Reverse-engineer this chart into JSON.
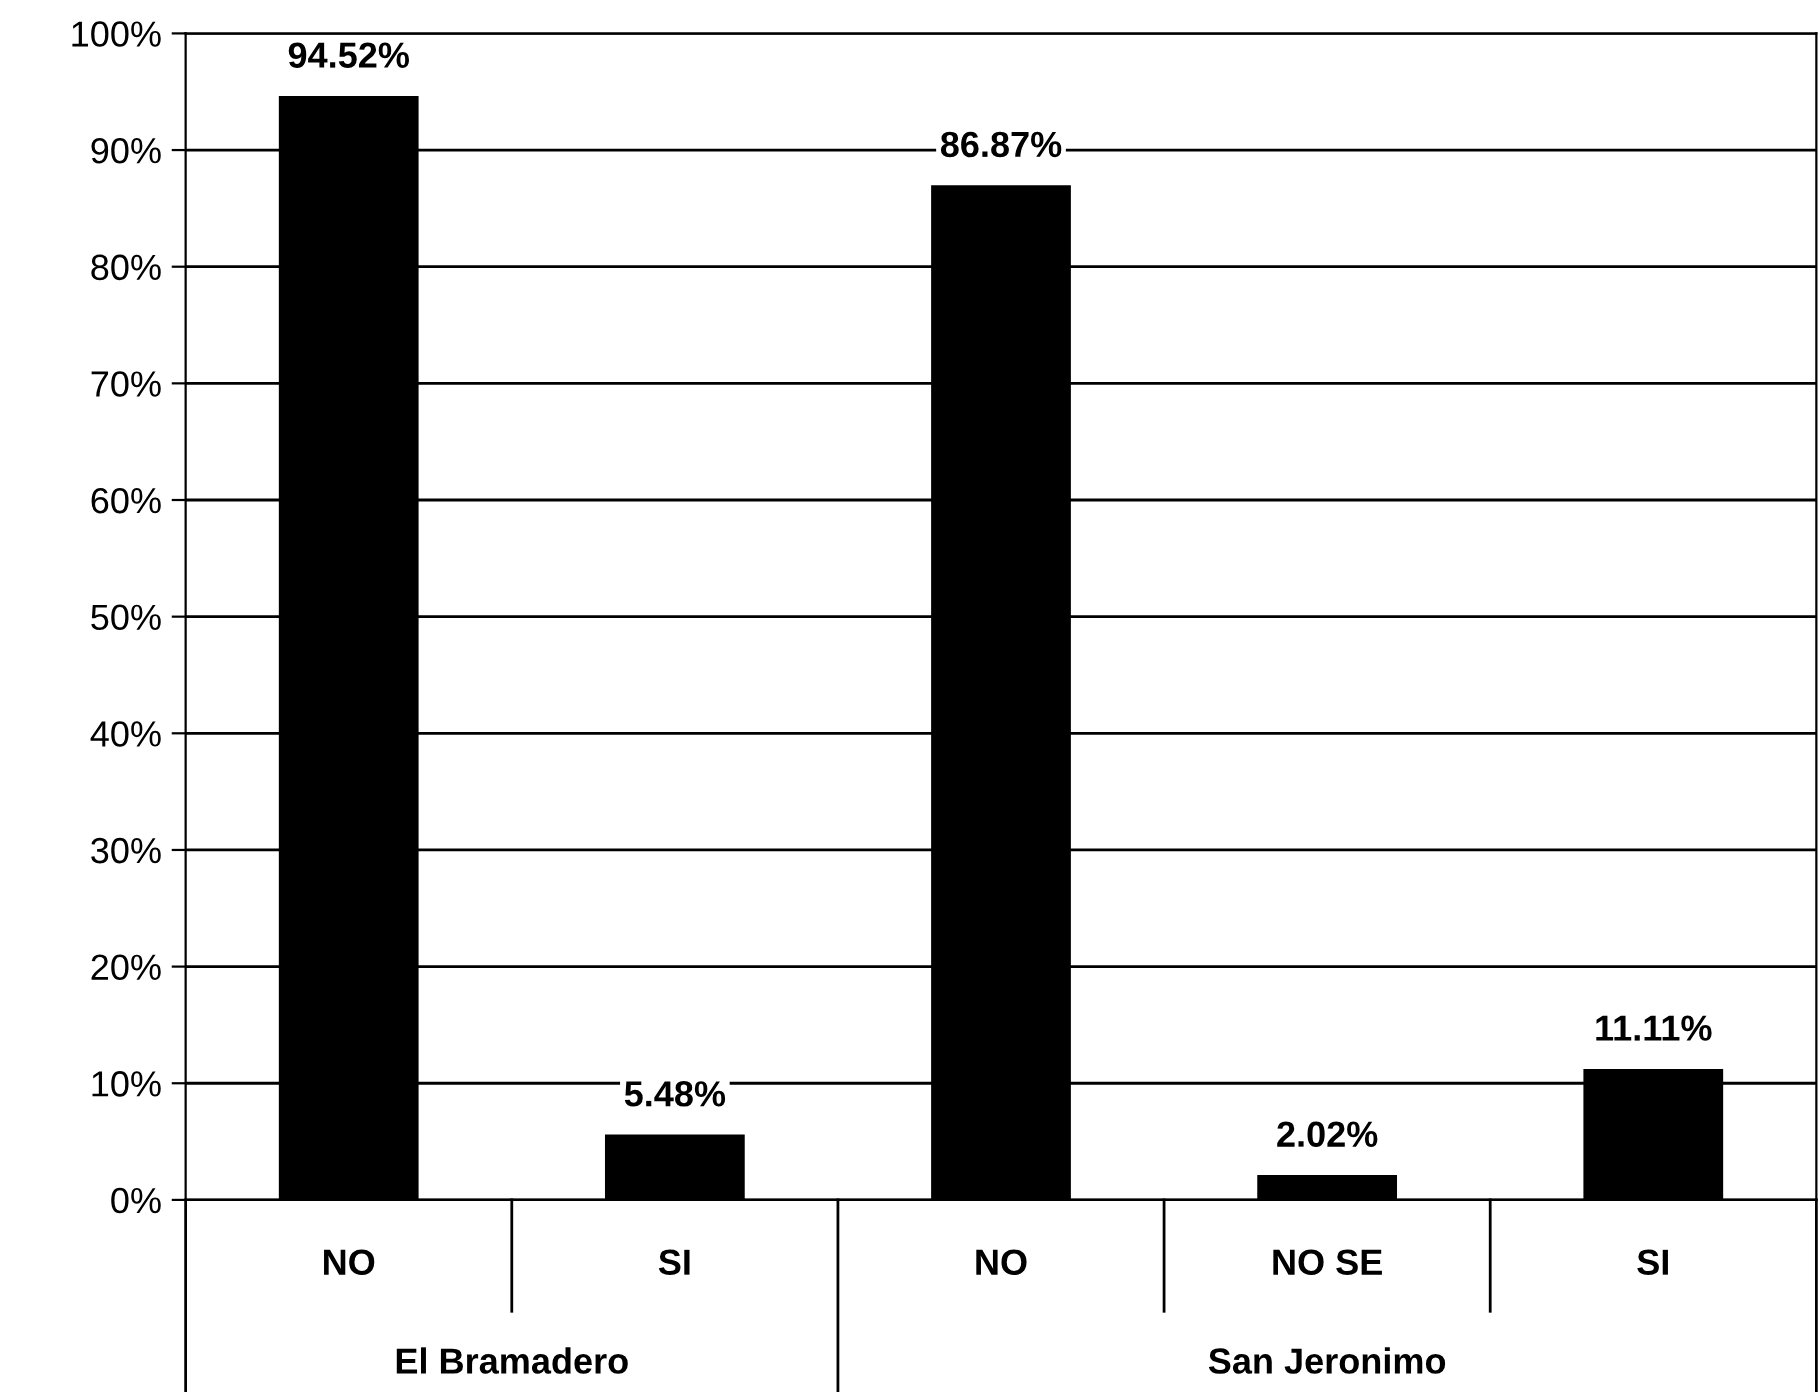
{
  "chart_data": {
    "type": "bar",
    "categories": [
      "NO",
      "SI",
      "NO",
      "NO SE",
      "SI"
    ],
    "values": [
      94.52,
      5.48,
      86.87,
      2.02,
      11.11
    ],
    "color": "#000000",
    "value_labels": [
      "94.52%",
      "5.48%",
      "86.87%",
      "2.02%",
      "11.11%"
    ],
    "ylim": [
      0,
      100
    ],
    "yticks": [
      {
        "value": 0,
        "label": "0%"
      },
      {
        "value": 10,
        "label": "10%"
      },
      {
        "value": 20,
        "label": "20%"
      },
      {
        "value": 30,
        "label": "30%"
      },
      {
        "value": 40,
        "label": "40%"
      },
      {
        "value": 50,
        "label": "50%"
      },
      {
        "value": 60,
        "label": "60%"
      },
      {
        "value": 70,
        "label": "70%"
      },
      {
        "value": 80,
        "label": "80%"
      },
      {
        "value": 90,
        "label": "90%"
      },
      {
        "value": 100,
        "label": "100%"
      }
    ],
    "grid": "y",
    "legend": false,
    "annotations": [
      "El Bramadero",
      "San Jeronimo"
    ]
  }
}
